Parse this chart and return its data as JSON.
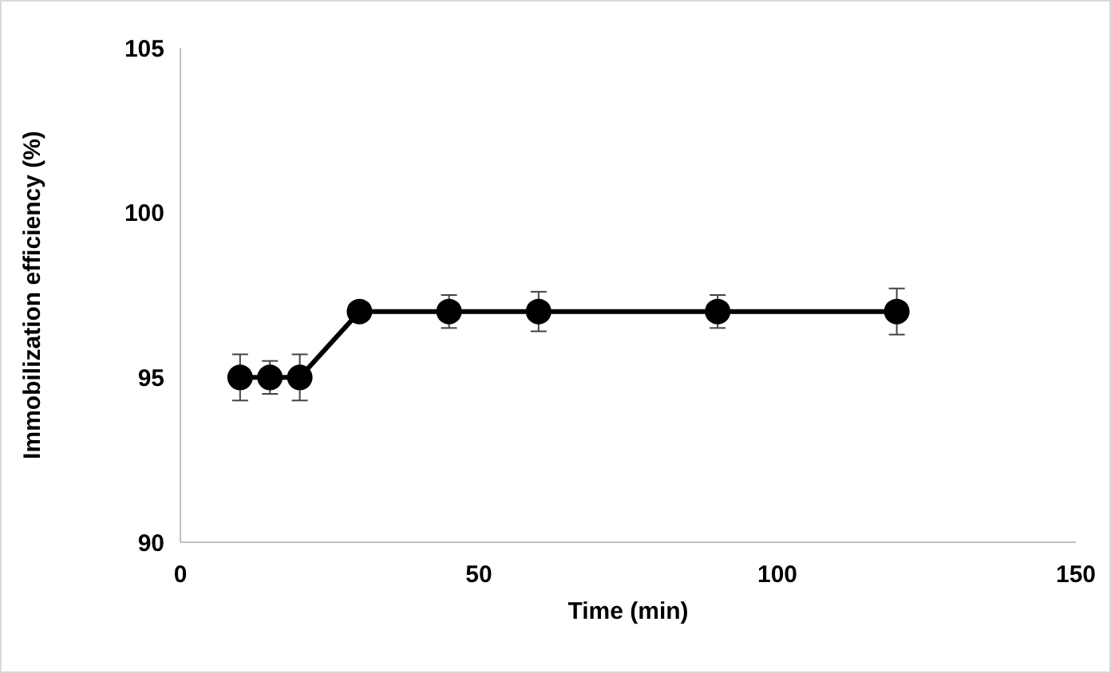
{
  "chart_data": {
    "type": "line",
    "xlabel": "Time (min)",
    "ylabel": "Immobilization efficiency (%)",
    "x": [
      10,
      15,
      20,
      30,
      45,
      60,
      90,
      120
    ],
    "series": [
      {
        "color": "#000000",
        "values": [
          95,
          95,
          95,
          97,
          97,
          97,
          97,
          97
        ],
        "errors": [
          0.7,
          0.5,
          0.7,
          null,
          0.5,
          0.6,
          0.5,
          0.7
        ]
      }
    ],
    "xlim": [
      0,
      150
    ],
    "xticks": [
      0,
      50,
      100,
      150
    ],
    "ylim": [
      90,
      105
    ],
    "yticks": [
      90,
      95,
      100,
      105
    ],
    "grid": false,
    "marker": "circle",
    "line_style": "solid"
  }
}
